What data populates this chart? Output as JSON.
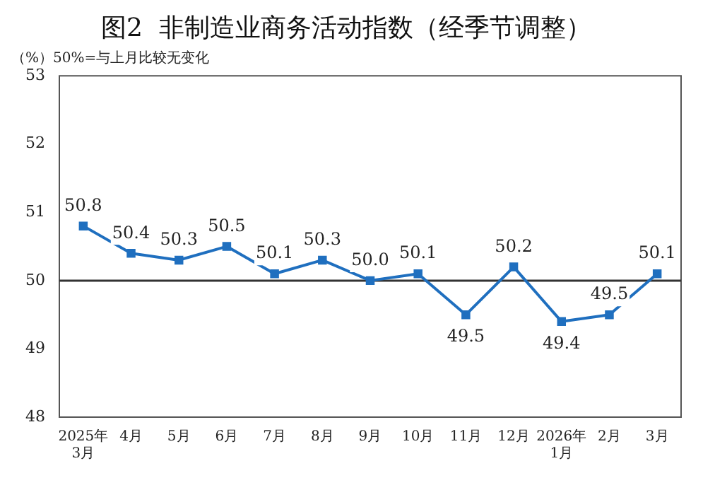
{
  "chart_data": {
    "type": "line",
    "title": "图2  非制造业商务活动指数（经季节调整）",
    "subtitle": "（%）50%=与上月比较无变化",
    "categories": [
      "2025年\n3月",
      "4月",
      "5月",
      "6月",
      "7月",
      "8月",
      "9月",
      "10月",
      "11月",
      "12月",
      "2026年\n1月",
      "2月",
      "3月"
    ],
    "series": [
      {
        "color": "#1f6fbf",
        "values": [
          50.8,
          50.4,
          50.3,
          50.5,
          50.1,
          50.3,
          50.0,
          50.1,
          49.5,
          50.2,
          49.4,
          49.5,
          50.1
        ]
      }
    ],
    "ylim": [
      48,
      53
    ],
    "yticks": [
      48,
      49,
      50,
      51,
      52,
      53
    ],
    "grid": false,
    "legend": false,
    "marker": "square",
    "line_style": "solid",
    "value_labels": [
      "50.8",
      "50.4",
      "50.3",
      "50.5",
      "50.1",
      "50.3",
      "50.0",
      "50.1",
      "49.5",
      "50.2",
      "49.4",
      "49.5",
      "50.1"
    ],
    "ref_lines": [
      {
        "axis": "y",
        "value": 50,
        "color": "#333333"
      }
    ]
  }
}
